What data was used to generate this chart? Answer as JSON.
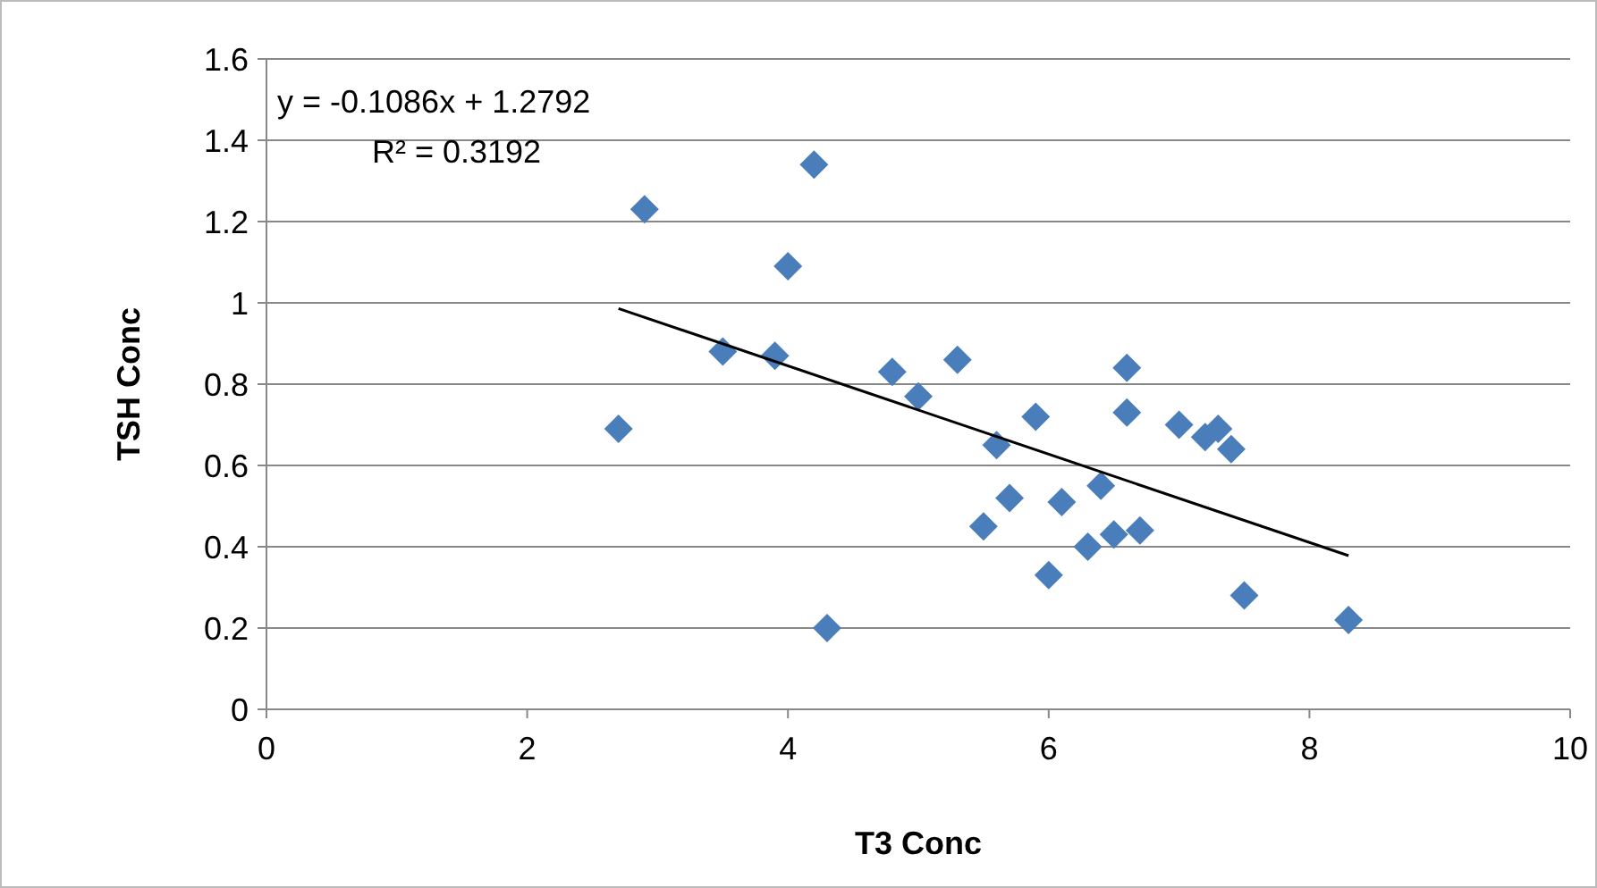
{
  "chart_data": {
    "type": "scatter",
    "xlabel": "T3 Conc",
    "ylabel": "TSH Conc",
    "xlim": [
      0,
      10
    ],
    "xticks": [
      0,
      2,
      4,
      6,
      8,
      10
    ],
    "ylim": [
      0,
      1.6
    ],
    "yticks": [
      0,
      0.2,
      0.4,
      0.6,
      0.8,
      1,
      1.2,
      1.4,
      1.6
    ],
    "grid": "y",
    "annotations": [
      "y = -0.1086x + 1.2792",
      "R² = 0.3192"
    ],
    "series": [
      {
        "marker": "diamond",
        "color": "#4a7ebb",
        "x": [
          2.7,
          2.9,
          3.5,
          3.9,
          4.0,
          4.2,
          4.3,
          4.8,
          5.0,
          5.3,
          5.5,
          5.6,
          5.7,
          5.9,
          6.0,
          6.1,
          6.3,
          6.4,
          6.5,
          6.6,
          6.6,
          6.7,
          7.0,
          7.2,
          7.3,
          7.4,
          7.5,
          8.3
        ],
        "values": [
          0.69,
          1.23,
          0.88,
          0.87,
          1.09,
          1.34,
          0.2,
          0.83,
          0.77,
          0.86,
          0.45,
          0.65,
          0.52,
          0.72,
          0.33,
          0.51,
          0.4,
          0.55,
          0.43,
          0.84,
          0.73,
          0.44,
          0.7,
          0.67,
          0.69,
          0.64,
          0.28,
          0.22
        ]
      },
      {
        "type": "line",
        "color": "#000000",
        "x": [
          2.7,
          8.3
        ],
        "values": [
          0.986,
          0.378
        ]
      }
    ]
  }
}
